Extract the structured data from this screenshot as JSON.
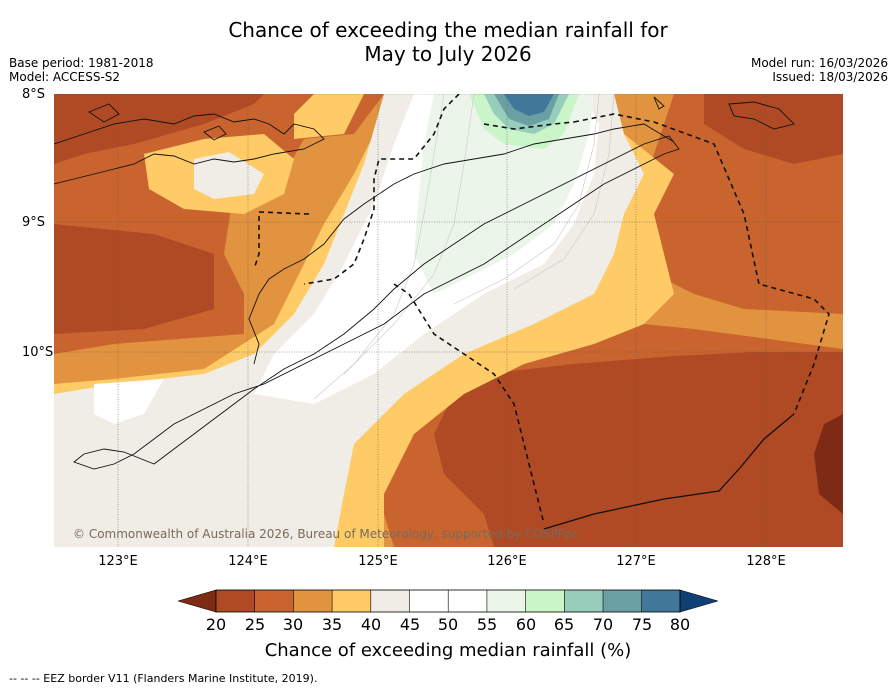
{
  "title_line1": "Chance of exceeding the median rainfall for",
  "title_line2": "May to July 2026",
  "meta_left": {
    "base_period": "Base period: 1981-2018",
    "model": "Model: ACCESS-S2"
  },
  "meta_right": {
    "model_run": "Model run: 16/03/2026",
    "issued": "Issued: 18/03/2026"
  },
  "map": {
    "lat_labels": [
      "8°S",
      "9°S",
      "10°S"
    ],
    "lon_labels": [
      "123°E",
      "124°E",
      "125°E",
      "126°E",
      "127°E",
      "128°E"
    ],
    "copyright": "© Commonwealth of Australia 2026, Bureau of Meteorology, supported by COSPPac"
  },
  "colorbar": {
    "ticks": [
      "20",
      "25",
      "30",
      "35",
      "40",
      "45",
      "50",
      "55",
      "60",
      "65",
      "70",
      "75",
      "80"
    ],
    "label": "Chance of exceeding median rainfall (%)",
    "colors": [
      "#7e2b16",
      "#b04a25",
      "#c9642f",
      "#e2933f",
      "#fecb67",
      "#f0ece6",
      "#ffffff",
      "#ffffff",
      "#ebf5e9",
      "#caf5c8",
      "#98cdbb",
      "#6aa0a4",
      "#41789a",
      "#0f3f75"
    ]
  },
  "footer": "--  --  -- EEZ border V11 (Flanders Marine Institute, 2019)."
}
